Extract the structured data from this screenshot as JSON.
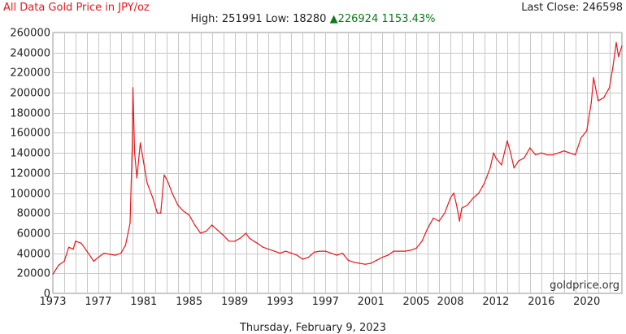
{
  "header": {
    "title": "All Data Gold Price in JPY/oz",
    "last_close_label": "Last Close:",
    "last_close_value": "246598",
    "high_label": "High:",
    "high_value": "251991",
    "low_label": "Low:",
    "low_value": "18280",
    "change_arrow": "▲",
    "change_value": "226924",
    "change_pct": "1153.43%"
  },
  "watermark": "goldprice.org",
  "footer_date": "Thursday, February 9, 2023",
  "colors": {
    "line": "#e8161b",
    "grid": "#c8c8c8",
    "title": "#e8161b",
    "change": "#0a7a1a"
  },
  "chart_data": {
    "type": "line",
    "title": "All Data Gold Price in JPY/oz",
    "xlabel": "",
    "ylabel": "",
    "xlim": [
      1973,
      2023.1
    ],
    "ylim": [
      0,
      260000
    ],
    "grid": true,
    "yticks": [
      0,
      20000,
      40000,
      60000,
      80000,
      100000,
      120000,
      140000,
      160000,
      180000,
      200000,
      220000,
      240000,
      260000
    ],
    "yticklabels": [
      "0",
      "20000",
      "40000",
      "60000",
      "80000",
      "100000",
      "120000",
      "140000",
      "160000",
      "180000",
      "200000",
      "220000",
      "240000",
      "260000"
    ],
    "xticks": [
      1973,
      1977,
      1981,
      1985,
      1989,
      1993,
      1997,
      2001,
      2005,
      2008,
      2012,
      2016,
      2020
    ],
    "xticklabels": [
      "1973",
      "1977",
      "1981",
      "1985",
      "1989",
      "1993",
      "1997",
      "2001",
      "2005",
      "2008",
      "2012",
      "2016",
      "2020"
    ],
    "series": [
      {
        "values": [
          [
            1973.0,
            19000
          ],
          [
            1973.5,
            28000
          ],
          [
            1974.0,
            32000
          ],
          [
            1974.4,
            46000
          ],
          [
            1974.8,
            44000
          ],
          [
            1975.0,
            52000
          ],
          [
            1975.5,
            50000
          ],
          [
            1976.0,
            42000
          ],
          [
            1976.6,
            32000
          ],
          [
            1977.0,
            36000
          ],
          [
            1977.5,
            40000
          ],
          [
            1978.0,
            39000
          ],
          [
            1978.5,
            38000
          ],
          [
            1979.0,
            40000
          ],
          [
            1979.4,
            48000
          ],
          [
            1979.8,
            70000
          ],
          [
            1980.0,
            150000
          ],
          [
            1980.05,
            205000
          ],
          [
            1980.2,
            140000
          ],
          [
            1980.4,
            115000
          ],
          [
            1980.7,
            150000
          ],
          [
            1981.0,
            130000
          ],
          [
            1981.3,
            110000
          ],
          [
            1981.8,
            95000
          ],
          [
            1982.2,
            80000
          ],
          [
            1982.5,
            80000
          ],
          [
            1982.8,
            118000
          ],
          [
            1983.1,
            112000
          ],
          [
            1983.5,
            100000
          ],
          [
            1984.0,
            88000
          ],
          [
            1984.5,
            82000
          ],
          [
            1985.0,
            78000
          ],
          [
            1985.5,
            68000
          ],
          [
            1986.0,
            60000
          ],
          [
            1986.5,
            62000
          ],
          [
            1987.0,
            68000
          ],
          [
            1987.5,
            63000
          ],
          [
            1988.0,
            58000
          ],
          [
            1988.5,
            52000
          ],
          [
            1989.0,
            52000
          ],
          [
            1989.5,
            55000
          ],
          [
            1990.0,
            60000
          ],
          [
            1990.3,
            55000
          ],
          [
            1990.7,
            52000
          ],
          [
            1991.0,
            50000
          ],
          [
            1991.5,
            46000
          ],
          [
            1992.0,
            44000
          ],
          [
            1992.5,
            42000
          ],
          [
            1993.0,
            40000
          ],
          [
            1993.5,
            42000
          ],
          [
            1994.0,
            40000
          ],
          [
            1994.5,
            38000
          ],
          [
            1995.0,
            34000
          ],
          [
            1995.5,
            36000
          ],
          [
            1996.0,
            41000
          ],
          [
            1996.5,
            42000
          ],
          [
            1997.0,
            42000
          ],
          [
            1997.5,
            40000
          ],
          [
            1998.0,
            38000
          ],
          [
            1998.5,
            40000
          ],
          [
            1999.0,
            33000
          ],
          [
            1999.5,
            31000
          ],
          [
            2000.0,
            30000
          ],
          [
            2000.5,
            29000
          ],
          [
            2001.0,
            30000
          ],
          [
            2001.5,
            33000
          ],
          [
            2002.0,
            36000
          ],
          [
            2002.5,
            38000
          ],
          [
            2003.0,
            42000
          ],
          [
            2003.5,
            42000
          ],
          [
            2004.0,
            42000
          ],
          [
            2004.5,
            43000
          ],
          [
            2005.0,
            45000
          ],
          [
            2005.5,
            52000
          ],
          [
            2006.0,
            65000
          ],
          [
            2006.5,
            75000
          ],
          [
            2007.0,
            72000
          ],
          [
            2007.5,
            80000
          ],
          [
            2008.0,
            95000
          ],
          [
            2008.3,
            100000
          ],
          [
            2008.6,
            85000
          ],
          [
            2008.8,
            72000
          ],
          [
            2009.0,
            85000
          ],
          [
            2009.5,
            88000
          ],
          [
            2010.0,
            95000
          ],
          [
            2010.5,
            100000
          ],
          [
            2011.0,
            110000
          ],
          [
            2011.5,
            125000
          ],
          [
            2011.8,
            140000
          ],
          [
            2012.0,
            135000
          ],
          [
            2012.5,
            128000
          ],
          [
            2013.0,
            152000
          ],
          [
            2013.3,
            140000
          ],
          [
            2013.6,
            125000
          ],
          [
            2014.0,
            132000
          ],
          [
            2014.5,
            135000
          ],
          [
            2015.0,
            145000
          ],
          [
            2015.5,
            138000
          ],
          [
            2016.0,
            140000
          ],
          [
            2016.5,
            138000
          ],
          [
            2017.0,
            138000
          ],
          [
            2017.5,
            140000
          ],
          [
            2018.0,
            142000
          ],
          [
            2018.5,
            140000
          ],
          [
            2019.0,
            138000
          ],
          [
            2019.5,
            155000
          ],
          [
            2020.0,
            162000
          ],
          [
            2020.4,
            190000
          ],
          [
            2020.6,
            215000
          ],
          [
            2021.0,
            192000
          ],
          [
            2021.5,
            195000
          ],
          [
            2022.0,
            205000
          ],
          [
            2022.3,
            225000
          ],
          [
            2022.6,
            250000
          ],
          [
            2022.8,
            236000
          ],
          [
            2023.1,
            246598
          ]
        ]
      }
    ]
  }
}
